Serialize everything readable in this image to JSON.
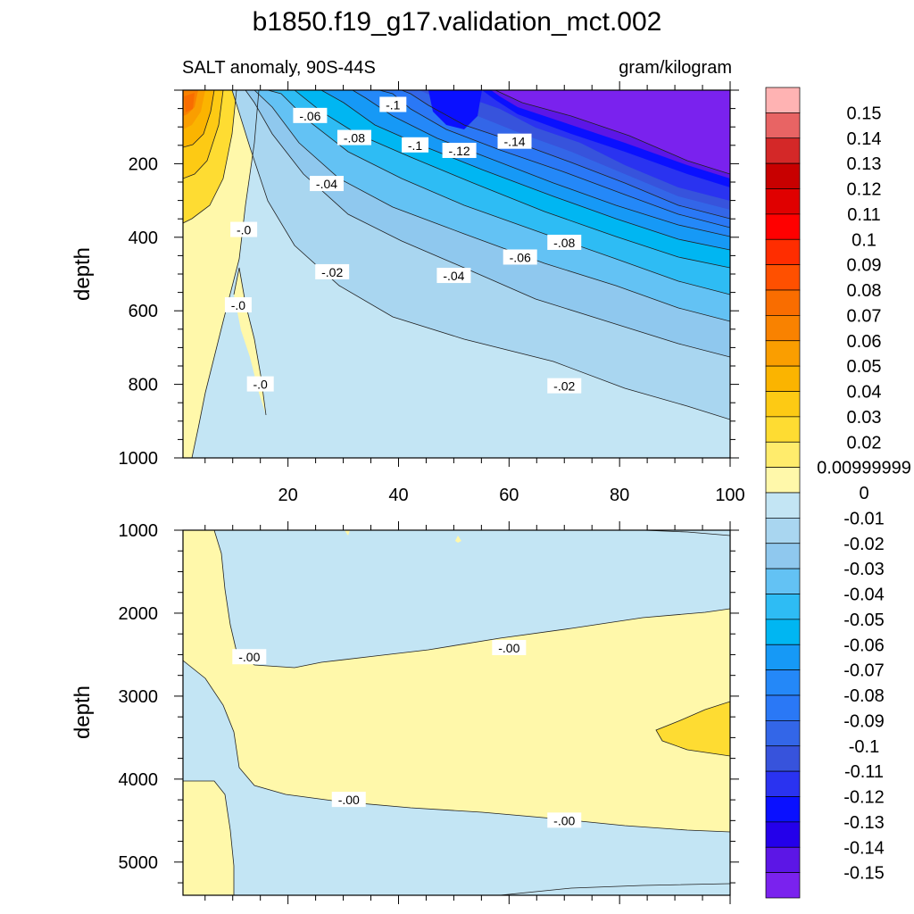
{
  "chart_data": {
    "type": "contour",
    "title": "b1850.f19_g17.validation_mct.002",
    "subtitle_left": "SALT anomaly, 90S-44S",
    "subtitle_right": "gram/kilogram",
    "ylabel": "depth",
    "xticks": [
      "20",
      "40",
      "60",
      "80",
      "100"
    ],
    "xlim": [
      1,
      100
    ],
    "panels": [
      {
        "name": "upper",
        "ylim": [
          0,
          1000
        ],
        "yticks": [
          "200",
          "400",
          "600",
          "800",
          "1000"
        ],
        "contour_labels": [
          {
            "text": "-.06",
            "x": 24,
            "y": 70
          },
          {
            "text": "-.1",
            "x": 39,
            "y": 40
          },
          {
            "text": "-.08",
            "x": 32,
            "y": 130
          },
          {
            "text": "-.1",
            "x": 43,
            "y": 150
          },
          {
            "text": "-.12",
            "x": 51,
            "y": 165
          },
          {
            "text": "-.14",
            "x": 61,
            "y": 140
          },
          {
            "text": "-.04",
            "x": 27,
            "y": 255
          },
          {
            "text": "-.0",
            "x": 12,
            "y": 380
          },
          {
            "text": "-.08",
            "x": 70,
            "y": 415
          },
          {
            "text": "-.06",
            "x": 62,
            "y": 455
          },
          {
            "text": "-.02",
            "x": 28,
            "y": 495
          },
          {
            "text": "-.04",
            "x": 50,
            "y": 505
          },
          {
            "text": "-.0",
            "x": 11,
            "y": 585
          },
          {
            "text": "-.0",
            "x": 15,
            "y": 800
          },
          {
            "text": "-.02",
            "x": 70,
            "y": 805
          }
        ]
      },
      {
        "name": "lower",
        "ylim": [
          1000,
          5400
        ],
        "yticks": [
          "1000",
          "2000",
          "3000",
          "4000",
          "5000"
        ],
        "contour_labels": [
          {
            "text": "-.00",
            "x": 13,
            "y": 2530
          },
          {
            "text": "-.00",
            "x": 60,
            "y": 2420
          },
          {
            "text": "-.00",
            "x": 31,
            "y": 4250
          },
          {
            "text": "-.00",
            "x": 70,
            "y": 4500
          }
        ]
      }
    ],
    "colorbar": {
      "labels": [
        "0.15",
        "0.14",
        "0.13",
        "0.12",
        "0.11",
        "0.1",
        "0.09",
        "0.08",
        "0.07",
        "0.06",
        "0.05",
        "0.04",
        "0.03",
        "0.02",
        "0.00999999",
        "0",
        "-0.01",
        "-0.02",
        "-0.03",
        "-0.04",
        "-0.05",
        "-0.06",
        "-0.07",
        "-0.08",
        "-0.09",
        "-0.1",
        "-0.11",
        "-0.12",
        "-0.13",
        "-0.14",
        "-0.15"
      ],
      "colors": [
        "#FFB3B3",
        "#E86464",
        "#D42828",
        "#C80000",
        "#E00000",
        "#FF0000",
        "#FF2D00",
        "#FF5000",
        "#F96D00",
        "#F98200",
        "#FA9E00",
        "#FBB400",
        "#FDCA14",
        "#FEDC32",
        "#FFEC6C",
        "#FFF8AA",
        "#C3E5F4",
        "#A9D6F0",
        "#8FC8EE",
        "#63C2F4",
        "#2EBCF4",
        "#00B6F2",
        "#1699F6",
        "#2488F8",
        "#2A78F6",
        "#3366E8",
        "#3753DC",
        "#2A33F0",
        "#0A10FF",
        "#2400EA",
        "#5C16E6",
        "#7A22EE"
      ]
    }
  }
}
